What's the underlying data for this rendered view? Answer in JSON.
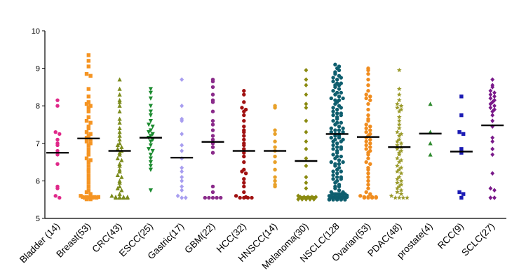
{
  "chart_data": {
    "type": "scatter",
    "title": "",
    "xlabel": "",
    "ylabel": "",
    "ylim": [
      5,
      10
    ],
    "yticks": [
      5,
      6,
      7,
      8,
      9,
      10
    ],
    "categories": [
      {
        "label": "Bladder (14)",
        "color": "#e0298a",
        "marker": "circle",
        "median": 6.75,
        "values": [
          8.15,
          8.0,
          7.3,
          7.25,
          7.1,
          7.0,
          6.95,
          6.8,
          6.7,
          6.45,
          5.85,
          5.8,
          5.6,
          5.55
        ]
      },
      {
        "label": "Breast(53)",
        "color": "#f59422",
        "marker": "square",
        "median": 7.13,
        "values": [
          9.35,
          9.2,
          9.05,
          8.85,
          8.8,
          8.45,
          8.25,
          8.1,
          8.05,
          8.0,
          7.95,
          7.85,
          7.7,
          7.6,
          7.55,
          7.45,
          7.4,
          7.3,
          7.25,
          7.2,
          7.15,
          7.1,
          7.05,
          7.0,
          6.95,
          6.85,
          6.75,
          6.7,
          6.6,
          6.55,
          6.5,
          6.4,
          6.3,
          6.25,
          6.15,
          6.05,
          5.95,
          5.85,
          5.75,
          5.7,
          5.65,
          5.6,
          5.55,
          5.55,
          5.55,
          5.55,
          5.55,
          5.55,
          5.55,
          5.55,
          5.55,
          5.55,
          5.55
        ]
      },
      {
        "label": "CRC(43)",
        "color": "#7a8a1a",
        "marker": "triangle-up",
        "median": 6.8,
        "values": [
          8.7,
          8.45,
          8.3,
          8.15,
          8.1,
          8.0,
          7.85,
          7.65,
          7.55,
          7.4,
          7.3,
          7.2,
          7.1,
          7.0,
          6.95,
          6.9,
          6.85,
          6.8,
          6.75,
          6.7,
          6.6,
          6.55,
          6.45,
          6.4,
          6.3,
          6.25,
          6.15,
          6.1,
          6.0,
          5.95,
          5.85,
          5.8,
          5.75,
          5.65,
          5.6,
          5.55,
          5.55,
          5.55,
          5.55,
          5.55,
          5.55,
          5.55,
          5.55
        ]
      },
      {
        "label": "ESCC(25)",
        "color": "#1a8a2e",
        "marker": "triangle-down",
        "median": 7.15,
        "values": [
          8.45,
          8.35,
          8.2,
          8.0,
          7.85,
          7.75,
          7.6,
          7.5,
          7.45,
          7.35,
          7.3,
          7.25,
          7.2,
          7.15,
          7.1,
          7.05,
          6.95,
          6.85,
          6.8,
          6.7,
          6.6,
          6.5,
          6.4,
          6.3,
          5.75
        ]
      },
      {
        "label": "Gastric(17)",
        "color": "#a89ef0",
        "marker": "diamond",
        "median": 6.62,
        "values": [
          8.7,
          8.0,
          7.65,
          7.6,
          7.25,
          6.95,
          6.8,
          6.6,
          6.35,
          6.25,
          6.1,
          6.0,
          5.85,
          5.75,
          5.6,
          5.55,
          5.55
        ]
      },
      {
        "label": "GBM(22)",
        "color": "#8a2a8a",
        "marker": "circle",
        "median": 7.04,
        "values": [
          8.7,
          8.65,
          8.5,
          8.3,
          8.15,
          8.1,
          7.85,
          7.6,
          7.5,
          7.35,
          7.2,
          7.1,
          7.0,
          6.9,
          6.75,
          5.85,
          5.7,
          5.55,
          5.55,
          5.55,
          5.55,
          5.55
        ]
      },
      {
        "label": "HCC(32)",
        "color": "#a01010",
        "marker": "circle",
        "median": 6.8,
        "values": [
          8.4,
          8.3,
          8.1,
          7.95,
          7.9,
          7.85,
          7.75,
          7.6,
          7.45,
          7.35,
          7.3,
          7.2,
          7.1,
          7.0,
          6.95,
          6.85,
          6.75,
          6.65,
          6.5,
          6.3,
          6.25,
          6.2,
          6.05,
          5.95,
          5.85,
          5.7,
          5.6,
          5.55,
          5.55,
          5.55,
          5.55,
          5.55
        ]
      },
      {
        "label": "HNSCC(14)",
        "color": "#e8a028",
        "marker": "circle",
        "median": 6.8,
        "values": [
          8.0,
          7.95,
          7.35,
          7.25,
          7.05,
          6.9,
          6.8,
          6.65,
          6.5,
          6.3,
          6.1,
          6.0,
          5.9,
          5.85
        ]
      },
      {
        "label": "Melanoma(30)",
        "color": "#8a8a10",
        "marker": "diamond",
        "median": 6.53,
        "values": [
          8.95,
          8.7,
          8.55,
          8.3,
          8.05,
          7.95,
          7.6,
          7.3,
          7.05,
          6.85,
          6.6,
          6.4,
          6.1,
          5.95,
          5.8,
          5.6,
          5.55,
          5.55,
          5.55,
          5.55,
          5.55,
          5.55,
          5.55,
          5.55,
          5.55,
          5.55,
          5.55,
          5.55,
          5.55,
          5.55
        ]
      },
      {
        "label": "NSCLC(128",
        "color": "#0e5e6e",
        "marker": "circle",
        "median": 7.25,
        "values": [
          9.1,
          9.05,
          9.0,
          8.9,
          8.85,
          8.8,
          8.75,
          8.7,
          8.65,
          8.6,
          8.55,
          8.5,
          8.45,
          8.4,
          8.35,
          8.3,
          8.25,
          8.2,
          8.15,
          8.1,
          8.05,
          8.0,
          7.95,
          7.9,
          7.85,
          7.8,
          7.75,
          7.7,
          7.65,
          7.6,
          7.55,
          7.5,
          7.45,
          7.4,
          7.35,
          7.3,
          7.25,
          7.2,
          7.15,
          7.1,
          7.05,
          7.0,
          6.95,
          6.9,
          6.85,
          6.8,
          6.75,
          6.7,
          6.65,
          6.6,
          6.55,
          6.5,
          6.45,
          6.4,
          6.35,
          6.3,
          6.25,
          6.2,
          6.15,
          6.1,
          6.05,
          6.0,
          5.95,
          5.9,
          5.85,
          5.8,
          5.75,
          5.7,
          5.65,
          5.6,
          8.95,
          8.75,
          8.55,
          8.35,
          8.15,
          7.95,
          7.75,
          7.55,
          7.35,
          7.25,
          7.2,
          7.15,
          7.05,
          6.85,
          6.65,
          6.45,
          6.25,
          6.05,
          5.85,
          5.65,
          8.6,
          8.2,
          7.8,
          7.4,
          7.3,
          7.1,
          6.9,
          6.5,
          6.1,
          5.7,
          5.55,
          5.55,
          5.55,
          5.55,
          5.55,
          5.55,
          5.55,
          5.55,
          5.55,
          5.55,
          5.55,
          5.55,
          5.55,
          5.55,
          5.55,
          5.55,
          5.55,
          5.55,
          5.55,
          5.55,
          5.55,
          5.55,
          5.55,
          5.55,
          5.55,
          5.55,
          5.55,
          5.55
        ]
      },
      {
        "label": "Ovarian(53)",
        "color": "#f08c1e",
        "marker": "circle",
        "median": 7.17,
        "values": [
          9.0,
          8.95,
          8.85,
          8.7,
          8.55,
          8.4,
          8.3,
          8.25,
          8.2,
          8.15,
          8.05,
          7.9,
          7.75,
          7.65,
          7.6,
          7.5,
          7.45,
          7.4,
          7.35,
          7.3,
          7.25,
          7.2,
          7.15,
          7.1,
          7.05,
          7.0,
          6.95,
          6.9,
          6.85,
          6.8,
          6.75,
          6.7,
          6.6,
          6.5,
          6.45,
          6.35,
          6.3,
          6.2,
          6.1,
          6.0,
          5.9,
          5.8,
          5.7,
          5.65,
          5.6,
          5.55,
          5.55,
          5.55,
          5.55,
          5.55,
          5.55,
          5.55,
          5.55
        ]
      },
      {
        "label": "PDAC(48)",
        "color": "#9a9a2a",
        "marker": "star",
        "median": 6.9,
        "values": [
          8.95,
          8.45,
          8.3,
          8.15,
          8.05,
          8.0,
          7.95,
          7.9,
          7.85,
          7.7,
          7.6,
          7.5,
          7.4,
          7.3,
          7.25,
          7.2,
          7.1,
          7.05,
          7.0,
          6.95,
          6.9,
          6.85,
          6.8,
          6.75,
          6.7,
          6.6,
          6.55,
          6.5,
          6.4,
          6.35,
          6.3,
          6.25,
          6.2,
          6.1,
          6.05,
          6.0,
          5.95,
          5.9,
          5.85,
          5.8,
          5.75,
          5.7,
          5.65,
          5.6,
          5.55,
          5.55,
          5.55,
          5.55
        ]
      },
      {
        "label": "prostate(4)",
        "color": "#2e8a2e",
        "marker": "triangle-up",
        "median": 7.26,
        "values": [
          8.05,
          7.3,
          7.0,
          6.7
        ]
      },
      {
        "label": "RCC(9)",
        "color": "#1a1ab4",
        "marker": "square",
        "median": 6.78,
        "values": [
          8.25,
          7.75,
          7.3,
          7.25,
          6.85,
          6.75,
          5.7,
          5.65,
          5.55
        ]
      },
      {
        "label": "SCLC(27)",
        "color": "#7a1a8a",
        "marker": "diamond",
        "median": 7.48,
        "values": [
          8.7,
          8.55,
          8.5,
          8.4,
          8.35,
          8.3,
          8.25,
          8.2,
          8.15,
          8.1,
          8.05,
          8.0,
          7.95,
          7.9,
          7.85,
          7.75,
          7.6,
          7.45,
          7.15,
          7.05,
          6.85,
          6.7,
          6.2,
          5.8,
          5.75,
          5.55,
          5.55
        ]
      }
    ]
  }
}
